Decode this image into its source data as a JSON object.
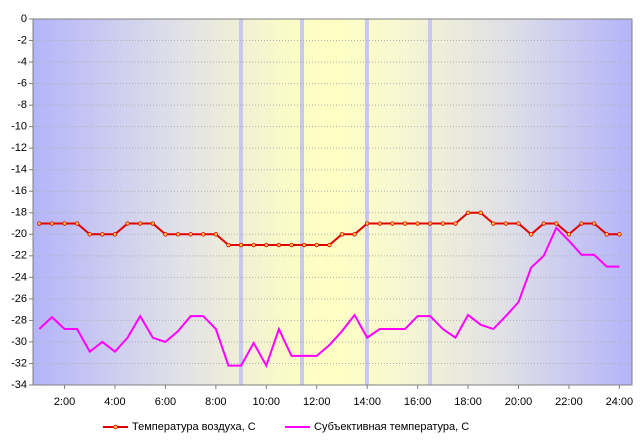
{
  "chart_data": {
    "type": "line",
    "x": [
      1,
      1.5,
      2,
      2.5,
      3,
      3.5,
      4,
      4.5,
      5,
      5.5,
      6,
      6.5,
      7,
      7.5,
      8,
      8.5,
      9,
      9.5,
      10,
      10.5,
      11,
      11.5,
      12,
      12.5,
      13,
      13.5,
      14,
      14.5,
      15,
      15.5,
      16,
      16.5,
      17,
      17.5,
      18,
      18.5,
      19,
      19.5,
      20,
      20.5,
      21,
      21.5,
      22,
      22.5,
      23,
      23.5,
      24
    ],
    "series": [
      {
        "name": "Температура воздуха, С",
        "color": "#e00000",
        "markers": true,
        "values": [
          -19,
          -19,
          -19,
          -19,
          -20,
          -20,
          -20,
          -19,
          -19,
          -19,
          -20,
          -20,
          -20,
          -20,
          -20,
          -21,
          -21,
          -21,
          -21,
          -21,
          -21,
          -21,
          -21,
          -21,
          -20,
          -20,
          -19,
          -19,
          -19,
          -19,
          -19,
          -19,
          -19,
          -19,
          -18,
          -18,
          -19,
          -19,
          -19,
          -20,
          -19,
          -19,
          -20,
          -19,
          -19,
          -20,
          -20
        ]
      },
      {
        "name": "Субъективная температура, С",
        "color": "#ff00ff",
        "markers": false,
        "values": [
          -28.8,
          -27.7,
          -28.8,
          -28.8,
          -30.9,
          -30,
          -30.9,
          -29.6,
          -27.6,
          -29.6,
          -30,
          -29,
          -27.6,
          -27.6,
          -28.8,
          -32.2,
          -32.2,
          -30.1,
          -32.2,
          -28.8,
          -31.3,
          -31.3,
          -31.3,
          -30.3,
          -29,
          -27.5,
          -29.6,
          -28.8,
          -28.8,
          -28.8,
          -27.6,
          -27.6,
          -28.8,
          -29.6,
          -27.5,
          -28.4,
          -28.8,
          -27.6,
          -26.3,
          -23.1,
          -22,
          -19.4,
          -20.6,
          -21.9,
          -21.9,
          -23,
          -23
        ]
      }
    ],
    "xlim": [
      0.75,
      24.5
    ],
    "xticks": [
      {
        "value": 2,
        "label": "2:00"
      },
      {
        "value": 4,
        "label": "4:00"
      },
      {
        "value": 6,
        "label": "6:00"
      },
      {
        "value": 8,
        "label": "8:00"
      },
      {
        "value": 10,
        "label": "10:00"
      },
      {
        "value": 12,
        "label": "12:00"
      },
      {
        "value": 14,
        "label": "14:00"
      },
      {
        "value": 16,
        "label": "16:00"
      },
      {
        "value": 18,
        "label": "18:00"
      },
      {
        "value": 20,
        "label": "20:00"
      },
      {
        "value": 22,
        "label": "22:00"
      },
      {
        "value": 24,
        "label": "24:00"
      }
    ],
    "ylim": [
      -34,
      0
    ],
    "yticks": [
      0,
      -2,
      -4,
      -6,
      -8,
      -10,
      -12,
      -14,
      -16,
      -18,
      -20,
      -22,
      -24,
      -26,
      -28,
      -30,
      -32,
      -34
    ],
    "grid": true
  }
}
